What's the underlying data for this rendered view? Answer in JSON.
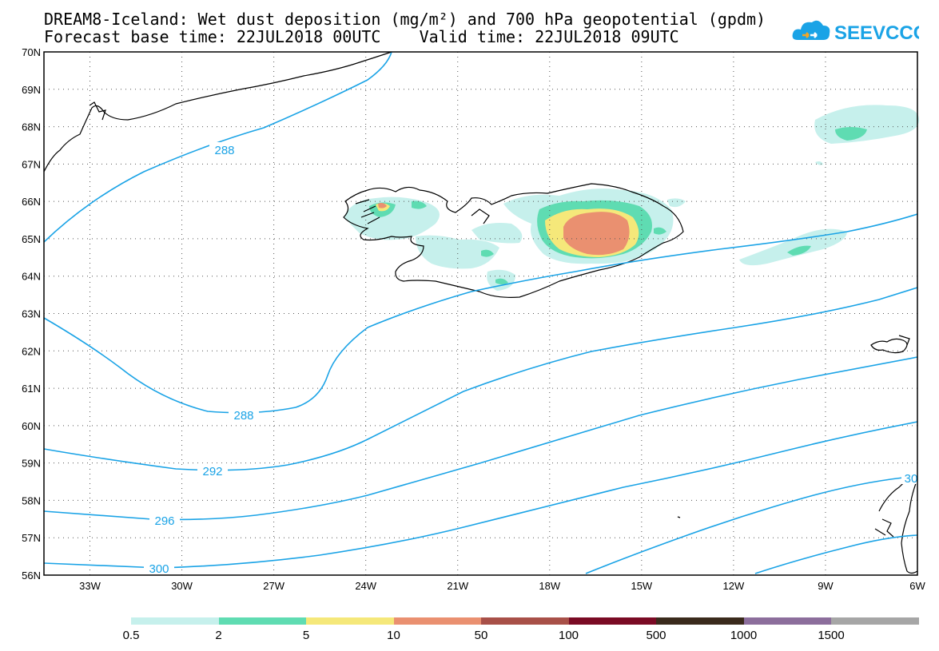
{
  "title": {
    "line1": "DREAM8-Iceland: Wet dust deposition (mg/m²) and 700 hPa geopotential (gpdm)",
    "line2": "Forecast base time: 22JUL2018 00UTC    Valid time: 22JUL2018 09UTC"
  },
  "logo": {
    "text": "SEEVCCC",
    "icon": "cloud-logo-icon",
    "color": "#1aa3e6"
  },
  "map": {
    "lon_range": [
      -34.5,
      -6
    ],
    "lat_range": [
      56,
      70
    ],
    "lat_labels": [
      "70N",
      "69N",
      "68N",
      "67N",
      "66N",
      "65N",
      "64N",
      "63N",
      "62N",
      "61N",
      "60N",
      "59N",
      "58N",
      "57N",
      "56N"
    ],
    "lon_labels": [
      "33W",
      "30W",
      "27W",
      "24W",
      "21W",
      "18W",
      "15W",
      "12W",
      "9W",
      "6W"
    ],
    "grid": "dotted",
    "contour_color": "#1aa3e6",
    "contour_labels": [
      "288",
      "288",
      "292",
      "296",
      "300",
      "30"
    ]
  },
  "colorbar": {
    "colors": [
      "#c6f0ec",
      "#5fdcb2",
      "#f5e87a",
      "#ea9070",
      "#a85048",
      "#7a0a24",
      "#3a2a1c",
      "#8c6e9c",
      "#a6a6a6"
    ],
    "labels": [
      "0.5",
      "2",
      "5",
      "10",
      "50",
      "100",
      "500",
      "1000",
      "1500"
    ]
  }
}
